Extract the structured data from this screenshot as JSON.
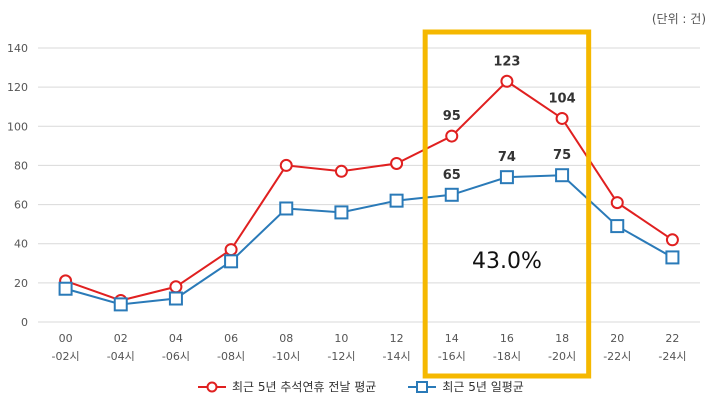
{
  "unit_label": "(단위 : 건)",
  "colors": {
    "series1": "#e02020",
    "series2": "#2a7ab8",
    "highlight": "#f5b800",
    "grid": "#d9d9d9"
  },
  "chart_data": {
    "type": "line",
    "categories": [
      [
        "00",
        "-02시"
      ],
      [
        "02",
        "-04시"
      ],
      [
        "04",
        "-06시"
      ],
      [
        "06",
        "-08시"
      ],
      [
        "08",
        "-10시"
      ],
      [
        "10",
        "-12시"
      ],
      [
        "12",
        "-14시"
      ],
      [
        "14",
        "-16시"
      ],
      [
        "16",
        "-18시"
      ],
      [
        "18",
        "-20시"
      ],
      [
        "20",
        "-22시"
      ],
      [
        "22",
        "-24시"
      ]
    ],
    "ylim": [
      0,
      140
    ],
    "yticks": [
      0,
      20,
      40,
      60,
      80,
      100,
      120,
      140
    ],
    "grid": true,
    "series": [
      {
        "name": "최근 5년 추석연휴 전날 평균",
        "marker": "circle",
        "values": [
          21,
          11,
          18,
          37,
          80,
          77,
          81,
          95,
          123,
          104,
          61,
          42
        ],
        "labels": {
          "7": "95",
          "8": "123",
          "9": "104"
        }
      },
      {
        "name": "최근 5년 일평균",
        "marker": "square",
        "values": [
          17,
          9,
          12,
          31,
          58,
          56,
          62,
          65,
          74,
          75,
          49,
          33
        ],
        "labels": {
          "7": "65",
          "8": "74",
          "9": "75"
        }
      }
    ],
    "highlight": {
      "from_index": 7,
      "to_index": 9,
      "annotation": "43.0%"
    },
    "legend_position": "bottom"
  }
}
